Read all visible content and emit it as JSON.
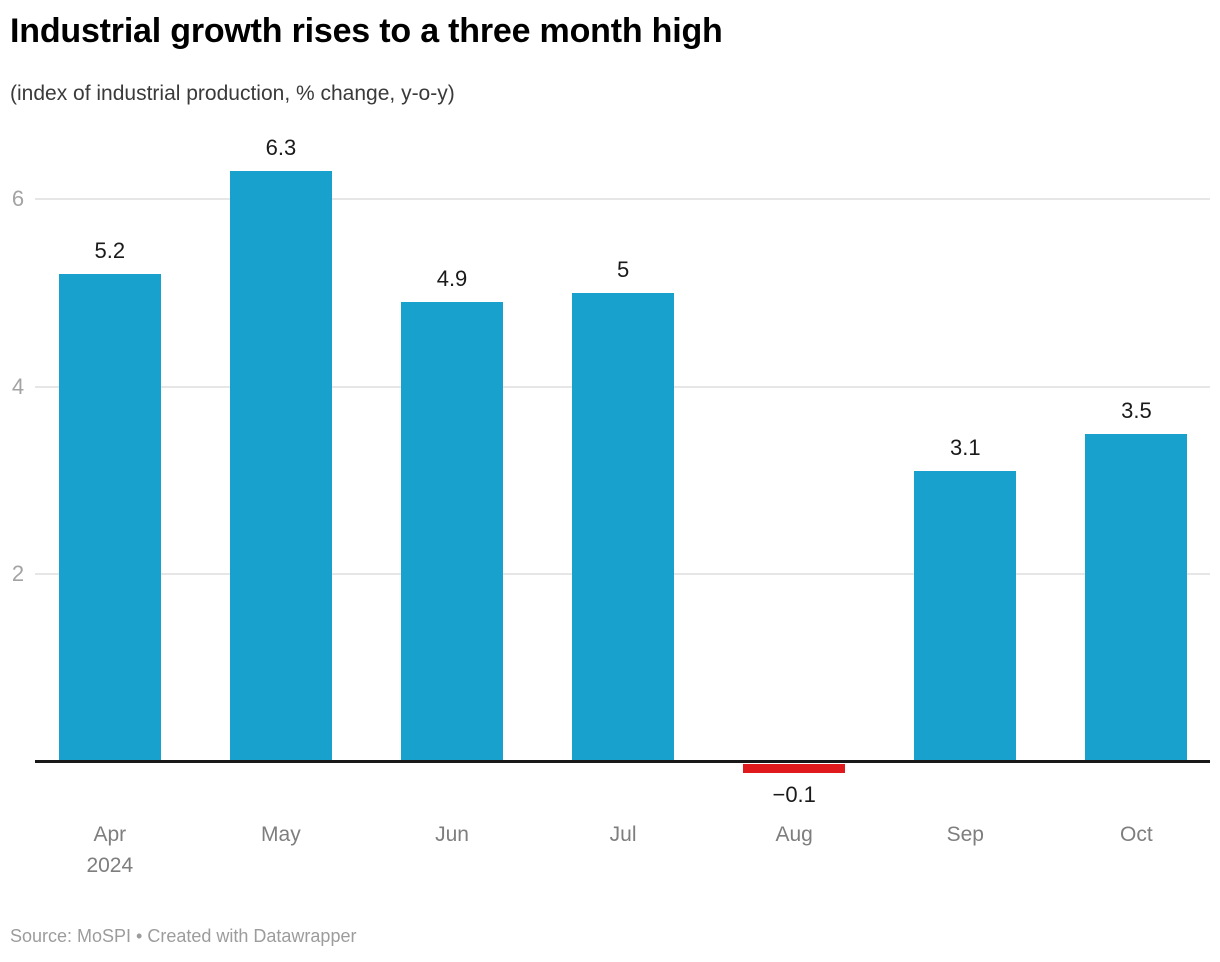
{
  "chart_data": {
    "type": "bar",
    "title": "Industrial growth rises to a three month high",
    "subtitle": "(index of industrial production, % change, y-o-y)",
    "categories": [
      "Apr",
      "May",
      "Jun",
      "Jul",
      "Aug",
      "Sep",
      "Oct"
    ],
    "category_sublabels": [
      "2024",
      "",
      "",
      "",
      "",
      "",
      ""
    ],
    "values": [
      5.2,
      6.3,
      4.9,
      5,
      -0.1,
      3.1,
      3.5
    ],
    "value_labels": [
      "5.2",
      "6.3",
      "4.9",
      "5",
      "−0.1",
      "3.1",
      "3.5"
    ],
    "xlabel": "",
    "ylabel": "",
    "y_ticks": [
      2,
      4,
      6
    ],
    "y_tick_labels": [
      "2",
      "4",
      "6"
    ],
    "ylim": [
      -0.4,
      6.75
    ],
    "grid": true,
    "legend": "none",
    "colors": {
      "positive_bar": "#18a1cc",
      "negative_bar": "#e01a1c",
      "gridline": "#e6e6e6",
      "baseline": "#181818"
    }
  },
  "footer": {
    "source": "Source: MoSPI • Created with Datawrapper"
  }
}
